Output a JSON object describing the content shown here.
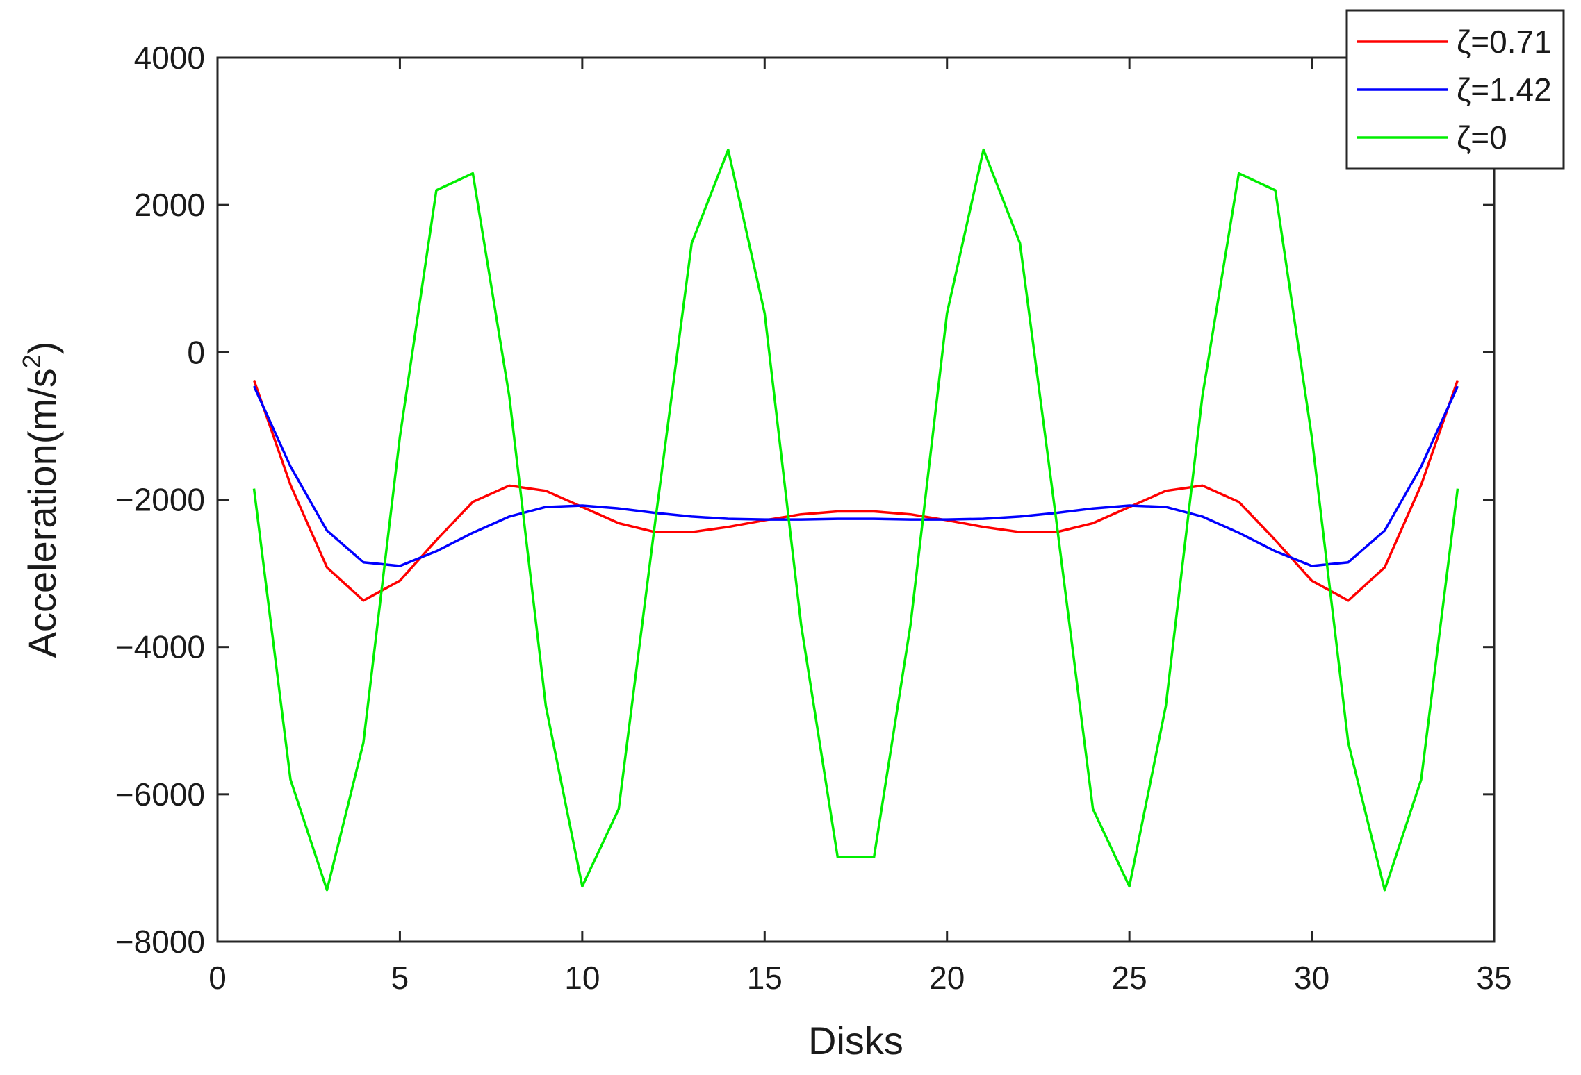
{
  "chart_data": {
    "type": "line",
    "title": "",
    "xlabel": "Disks",
    "ylabel": "Acceleration(m/s",
    "ylabel_superscript": "2",
    "ylabel_suffix": ")",
    "xlim": [
      0,
      35
    ],
    "ylim": [
      -8000,
      4000
    ],
    "xticks": [
      0,
      5,
      10,
      15,
      20,
      25,
      30,
      35
    ],
    "yticks": [
      4000,
      2000,
      0,
      -2000,
      -4000,
      -6000,
      -8000
    ],
    "xtick_labels": [
      "0",
      "5",
      "10",
      "15",
      "20",
      "25",
      "30",
      "35"
    ],
    "ytick_labels": [
      "4000",
      "2000",
      "0",
      "−2000",
      "−4000",
      "−6000",
      "−8000"
    ],
    "grid": false,
    "legend_position": "top-right, outside axes",
    "x": [
      1,
      2,
      3,
      4,
      5,
      6,
      7,
      8,
      9,
      10,
      11,
      12,
      13,
      14,
      15,
      16,
      17,
      18,
      19,
      20,
      21,
      22,
      23,
      24,
      25,
      26,
      27,
      28,
      29,
      30,
      31,
      32,
      33,
      34
    ],
    "series": [
      {
        "name": "ζ=0.71",
        "color": "#ff0000",
        "values": [
          -380,
          -1800,
          -2920,
          -3370,
          -3100,
          -2550,
          -2030,
          -1810,
          -1880,
          -2100,
          -2320,
          -2440,
          -2440,
          -2370,
          -2280,
          -2200,
          -2160,
          -2160,
          -2200,
          -2280,
          -2370,
          -2440,
          -2440,
          -2320,
          -2100,
          -1880,
          -1810,
          -2030,
          -2550,
          -3100,
          -3370,
          -2920,
          -1800,
          -380
        ]
      },
      {
        "name": "ζ=1.42",
        "color": "#0000ff",
        "values": [
          -460,
          -1550,
          -2420,
          -2850,
          -2900,
          -2700,
          -2450,
          -2230,
          -2100,
          -2080,
          -2120,
          -2180,
          -2230,
          -2260,
          -2270,
          -2270,
          -2260,
          -2260,
          -2270,
          -2270,
          -2260,
          -2230,
          -2180,
          -2120,
          -2080,
          -2100,
          -2230,
          -2450,
          -2700,
          -2900,
          -2850,
          -2420,
          -1550,
          -460
        ]
      },
      {
        "name": "ζ=0",
        "color": "#00ee00",
        "values": [
          -1850,
          -5800,
          -7300,
          -5300,
          -1150,
          2200,
          2430,
          -600,
          -4800,
          -7250,
          -6200,
          -2300,
          1480,
          2750,
          530,
          -3700,
          -6850,
          -6850,
          -3700,
          530,
          2750,
          1480,
          -2300,
          -6200,
          -7250,
          -4800,
          -600,
          2430,
          2200,
          -1150,
          -5300,
          -7300,
          -5800,
          -1850
        ]
      }
    ]
  }
}
